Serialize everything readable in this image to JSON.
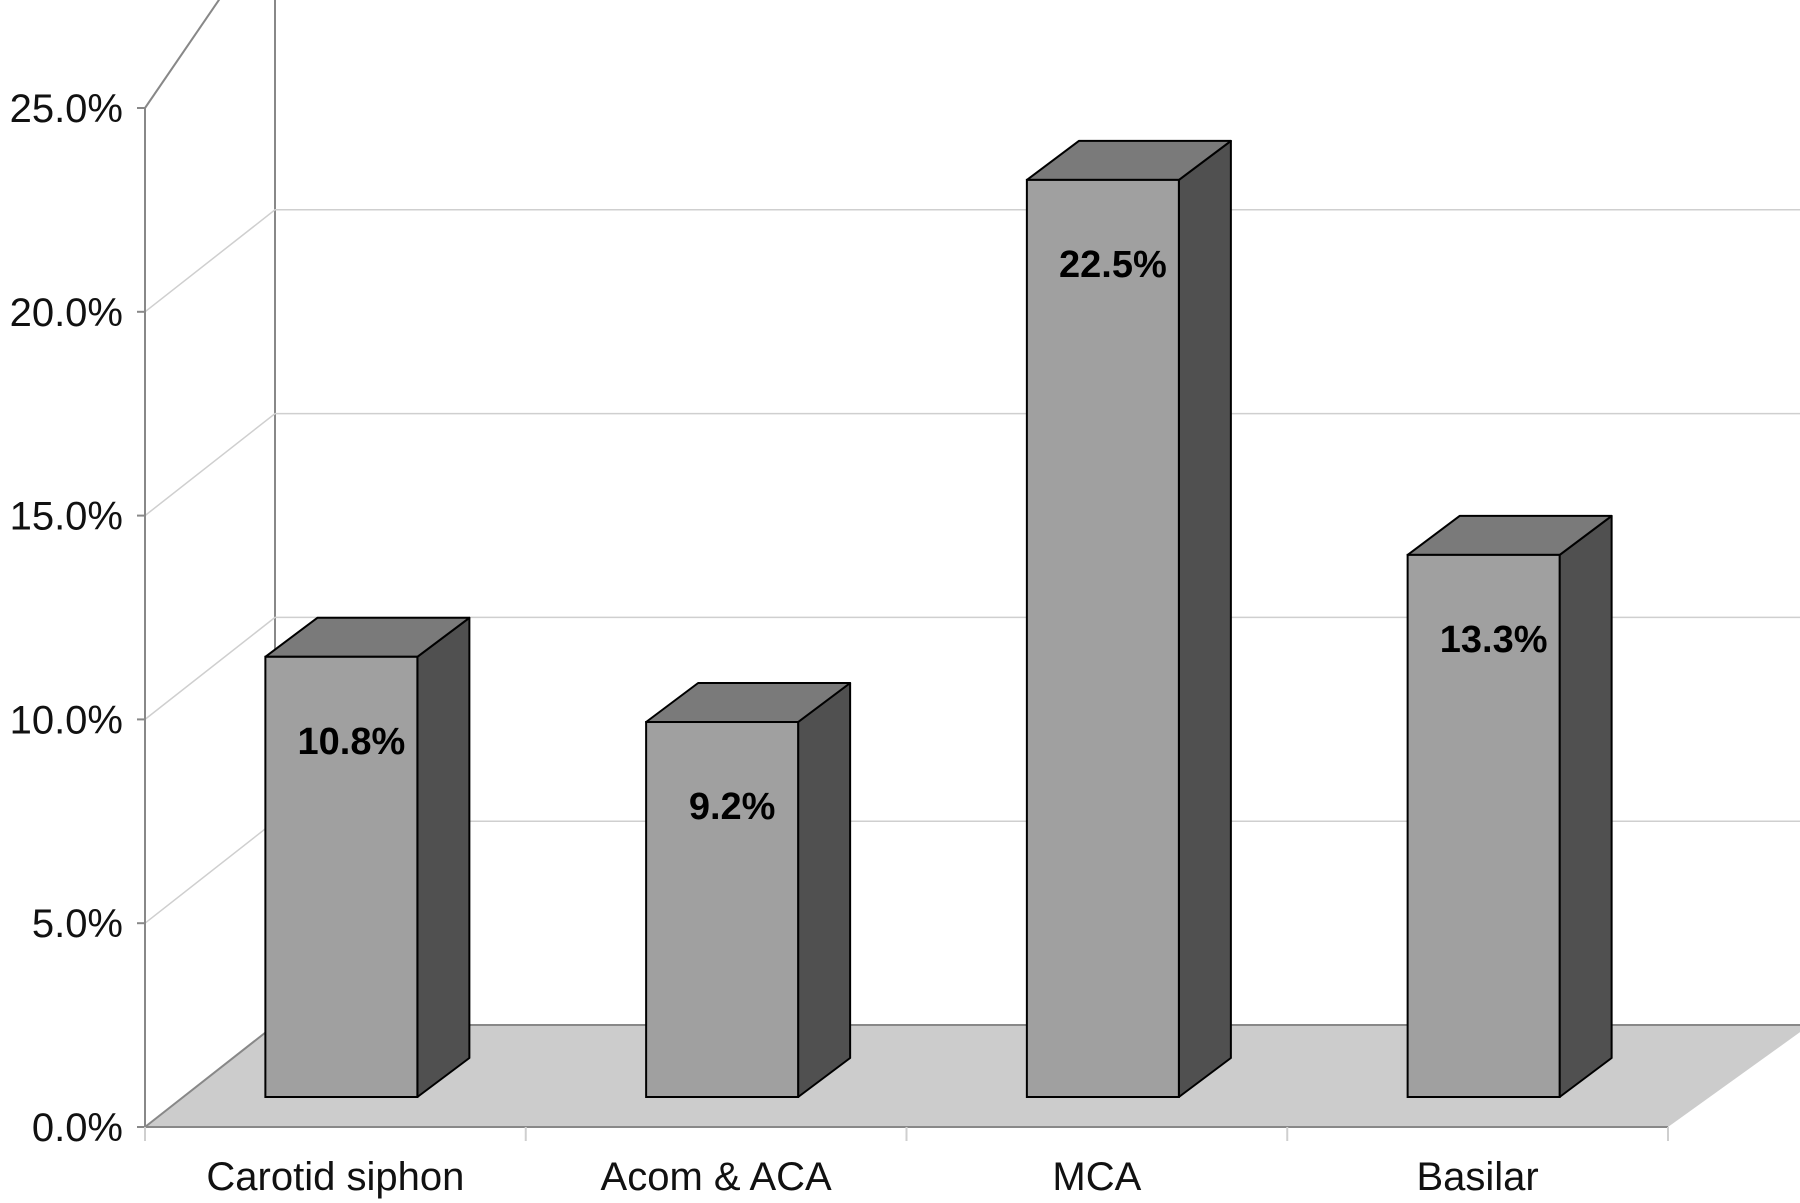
{
  "chart_data": {
    "type": "bar",
    "categories": [
      "Carotid siphon",
      "Acom & ACA",
      "MCA",
      "Basilar"
    ],
    "values": [
      10.8,
      9.2,
      22.5,
      13.3
    ],
    "data_labels": [
      "10.8%",
      "9.2%",
      "22.5%",
      "13.3%"
    ],
    "title": "",
    "xlabel": "",
    "ylabel": "",
    "ylim": [
      0,
      25
    ],
    "yticks": [
      0,
      5,
      10,
      15,
      20,
      25
    ],
    "ytick_labels": [
      "0.0%",
      "5.0%",
      "10.0%",
      "15.0%",
      "20.0%",
      "25.0%"
    ],
    "grid": true,
    "style": "3d",
    "colors": {
      "bar_front": "#a0a0a0",
      "bar_top": "#7a7a7a",
      "bar_side": "#505050",
      "floor": "#cccccc",
      "wall_line": "#888888",
      "grid_line": "#cfcfcf"
    }
  }
}
